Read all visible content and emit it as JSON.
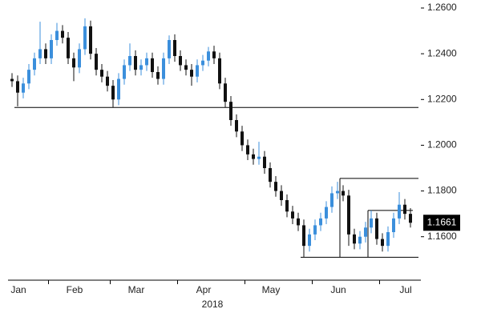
{
  "chart_data": {
    "type": "candlestick",
    "categories": [
      null,
      null,
      "Jan",
      null,
      null,
      null,
      null,
      null,
      null,
      null,
      null,
      null,
      "Feb",
      null,
      null,
      null,
      null,
      null,
      null,
      null,
      null,
      null,
      null,
      "Mar",
      null,
      null,
      null,
      null,
      null,
      null,
      null,
      null,
      null,
      null,
      null,
      "Apr",
      null,
      null,
      null,
      null,
      null,
      null,
      null,
      null,
      null,
      null,
      null,
      "May",
      null,
      null,
      null,
      null,
      null,
      null,
      null,
      null,
      null,
      null,
      null,
      "Jun",
      null,
      null,
      null,
      null,
      null,
      null,
      null,
      null,
      null,
      null,
      null,
      "Jul"
    ],
    "x_label": "2018",
    "open": [
      1.229,
      1.228,
      1.223,
      1.227,
      1.233,
      1.238,
      1.242,
      1.238,
      1.246,
      1.25,
      1.247,
      1.238,
      1.234,
      1.242,
      1.252,
      1.24,
      1.233,
      1.23,
      1.226,
      1.22,
      1.229,
      1.235,
      1.239,
      1.233,
      1.235,
      1.238,
      1.232,
      1.229,
      1.238,
      1.246,
      1.239,
      1.235,
      1.233,
      1.23,
      1.235,
      1.237,
      1.241,
      1.238,
      1.227,
      1.219,
      1.211,
      1.206,
      1.2,
      1.196,
      1.194,
      1.195,
      1.19,
      1.184,
      1.18,
      1.176,
      1.171,
      1.168,
      1.165,
      1.156,
      1.161,
      1.165,
      1.168,
      1.173,
      1.179,
      1.18,
      1.178,
      1.161,
      1.157,
      1.16,
      1.164,
      1.168,
      1.159,
      1.156,
      1.162,
      1.168,
      1.174,
      1.17
    ],
    "high": [
      1.2315,
      1.2305,
      1.2295,
      1.2355,
      1.2405,
      1.254,
      1.2445,
      1.2485,
      1.2535,
      1.2525,
      1.2495,
      1.2405,
      1.2445,
      1.2555,
      1.2545,
      1.2425,
      1.2355,
      1.2325,
      1.2285,
      1.2315,
      1.2375,
      1.2445,
      1.2415,
      1.2375,
      1.2405,
      1.2405,
      1.2345,
      1.2405,
      1.248,
      1.2485,
      1.2415,
      1.2375,
      1.2355,
      1.2375,
      1.2395,
      1.243,
      1.2435,
      1.2405,
      1.2295,
      1.2215,
      1.2135,
      1.2085,
      1.2025,
      1.1985,
      1.2015,
      1.1975,
      1.1925,
      1.1865,
      1.1825,
      1.1785,
      1.1735,
      1.1705,
      1.1675,
      1.1635,
      1.1675,
      1.1705,
      1.1755,
      1.182,
      1.184,
      1.1825,
      1.1805,
      1.1635,
      1.1625,
      1.1665,
      1.1715,
      1.1705,
      1.1615,
      1.1645,
      1.1705,
      1.1795,
      1.1765,
      1.1725
    ],
    "low": [
      1.2255,
      1.217,
      1.2205,
      1.2245,
      1.2305,
      1.2355,
      1.2355,
      1.2355,
      1.2435,
      1.2445,
      1.2355,
      1.228,
      1.2315,
      1.2395,
      1.2375,
      1.2305,
      1.2275,
      1.2235,
      1.2165,
      1.2175,
      1.2265,
      1.2325,
      1.2305,
      1.2305,
      1.2325,
      1.2295,
      1.2265,
      1.2265,
      1.2355,
      1.2365,
      1.2325,
      1.2305,
      1.226,
      1.2275,
      1.2325,
      1.2345,
      1.2355,
      1.2245,
      1.2165,
      1.2085,
      1.2035,
      1.1975,
      1.1935,
      1.1915,
      1.1915,
      1.1875,
      1.1815,
      1.1775,
      1.1735,
      1.1685,
      1.1655,
      1.1625,
      1.151,
      1.1535,
      1.1585,
      1.1625,
      1.1655,
      1.1705,
      1.1765,
      1.1755,
      1.156,
      1.1545,
      1.1545,
      1.1575,
      1.1615,
      1.1565,
      1.1535,
      1.1535,
      1.1595,
      1.1655,
      1.1675,
      1.164
    ],
    "close": [
      1.228,
      1.223,
      1.227,
      1.233,
      1.238,
      1.242,
      1.238,
      1.246,
      1.25,
      1.247,
      1.238,
      1.234,
      1.242,
      1.252,
      1.24,
      1.233,
      1.23,
      1.226,
      1.22,
      1.229,
      1.235,
      1.239,
      1.233,
      1.235,
      1.238,
      1.232,
      1.229,
      1.238,
      1.246,
      1.239,
      1.235,
      1.233,
      1.23,
      1.235,
      1.237,
      1.241,
      1.238,
      1.227,
      1.219,
      1.211,
      1.206,
      1.2,
      1.196,
      1.194,
      1.195,
      1.19,
      1.184,
      1.18,
      1.176,
      1.171,
      1.168,
      1.165,
      1.156,
      1.161,
      1.165,
      1.168,
      1.173,
      1.179,
      1.18,
      1.178,
      1.161,
      1.157,
      1.16,
      1.164,
      1.168,
      1.159,
      1.156,
      1.162,
      1.168,
      1.174,
      1.17,
      1.1661
    ],
    "up_color": "#3b8fdc",
    "down_color": "#111111",
    "ylim": [
      1.141,
      1.2635
    ],
    "yticks": [
      {
        "value": 1.16,
        "label": "1.1600"
      },
      {
        "value": 1.18,
        "label": "1.1800"
      },
      {
        "value": 1.2,
        "label": "1.2000"
      },
      {
        "value": 1.22,
        "label": "1.2200"
      },
      {
        "value": 1.24,
        "label": "1.2400"
      },
      {
        "value": 1.26,
        "label": "1.2600"
      }
    ],
    "levels": [
      1.2165,
      1.1855,
      1.1715,
      1.151
    ],
    "last_price": 1.1661
  }
}
